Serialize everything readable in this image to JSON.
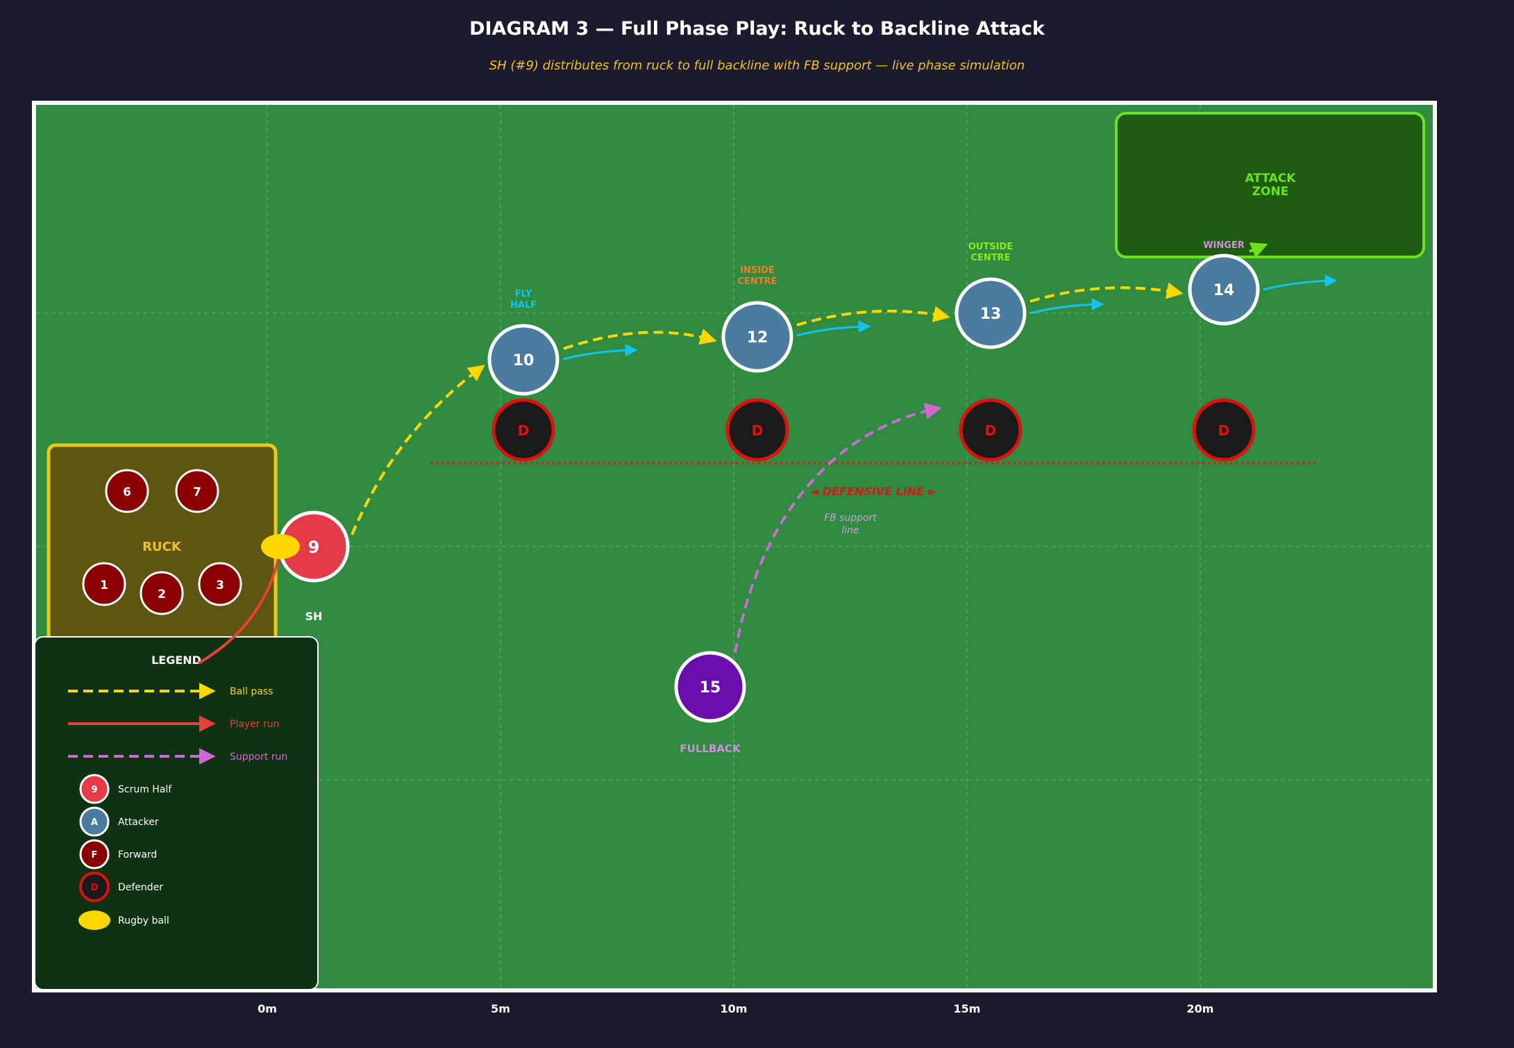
{
  "title": "DIAGRAM 3 — Full Phase Play: Ruck to Backline Attack",
  "subtitle": "SH (#9) distributes from ruck to full backline with FB support — live phase simulation",
  "colors": {
    "background": "#1b1a2e",
    "pitch": "#2e8b3f",
    "ball_pass": "#ffd700",
    "player_run": "#e8413c",
    "support_run": "#d068d6",
    "attacker_run": "#13c3f0",
    "scrum_half": "#e63946",
    "attacker": "#4a7ba0",
    "forward": "#8b0000",
    "defender_ring": "#e01010",
    "fullback": "#6a0dad",
    "attack_zone": "#6fe01c"
  },
  "x_axis_labels": [
    "0m",
    "5m",
    "10m",
    "15m",
    "20m"
  ],
  "ruck": {
    "label": "RUCK",
    "forwards": [
      "6",
      "7",
      "1",
      "2",
      "3"
    ]
  },
  "scrum_half": {
    "number": "9",
    "label": "SH"
  },
  "attackers": [
    {
      "number": "10",
      "role": "FLY HALF",
      "role_color": "#13c3f0"
    },
    {
      "number": "12",
      "role": "INSIDE CENTRE",
      "role_color": "#f07d2a"
    },
    {
      "number": "13",
      "role": "OUTSIDE CENTRE",
      "role_color": "#8ee81c"
    },
    {
      "number": "14",
      "role": "WINGER",
      "role_color": "#d08fd6"
    }
  ],
  "defenders": [
    "D",
    "D",
    "D",
    "D"
  ],
  "defensive_line_label": "◄ DEFENSIVE LINE ►",
  "fb_support_label": "FB support line",
  "fullback": {
    "number": "15",
    "label": "FULLBACK"
  },
  "attack_zone": {
    "label": "ATTACK ZONE"
  },
  "legend": {
    "title": "LEGEND",
    "line_items": [
      {
        "label": "Ball pass",
        "style": "dashed",
        "color": "#ffd700"
      },
      {
        "label": "Player run",
        "style": "solid",
        "color": "#e8413c"
      },
      {
        "label": "Support run",
        "style": "dashed",
        "color": "#d068d6"
      }
    ],
    "marker_items": [
      {
        "symbol": "9",
        "label": "Scrum Half",
        "fill": "#e63946",
        "stroke": "#ffffff",
        "text_color": "#ffffff"
      },
      {
        "symbol": "A",
        "label": "Attacker",
        "fill": "#4a7ba0",
        "stroke": "#ffffff",
        "text_color": "#ffffff"
      },
      {
        "symbol": "F",
        "label": "Forward",
        "fill": "#8b0000",
        "stroke": "#ffffff",
        "text_color": "#ffffff"
      },
      {
        "symbol": "D",
        "label": "Defender",
        "fill": "#1a1a1a",
        "stroke": "#e01010",
        "text_color": "#e01010"
      },
      {
        "symbol": "",
        "label": "Rugby ball",
        "fill": "#ffd700",
        "stroke": "none",
        "text_color": "#ffffff"
      }
    ]
  }
}
